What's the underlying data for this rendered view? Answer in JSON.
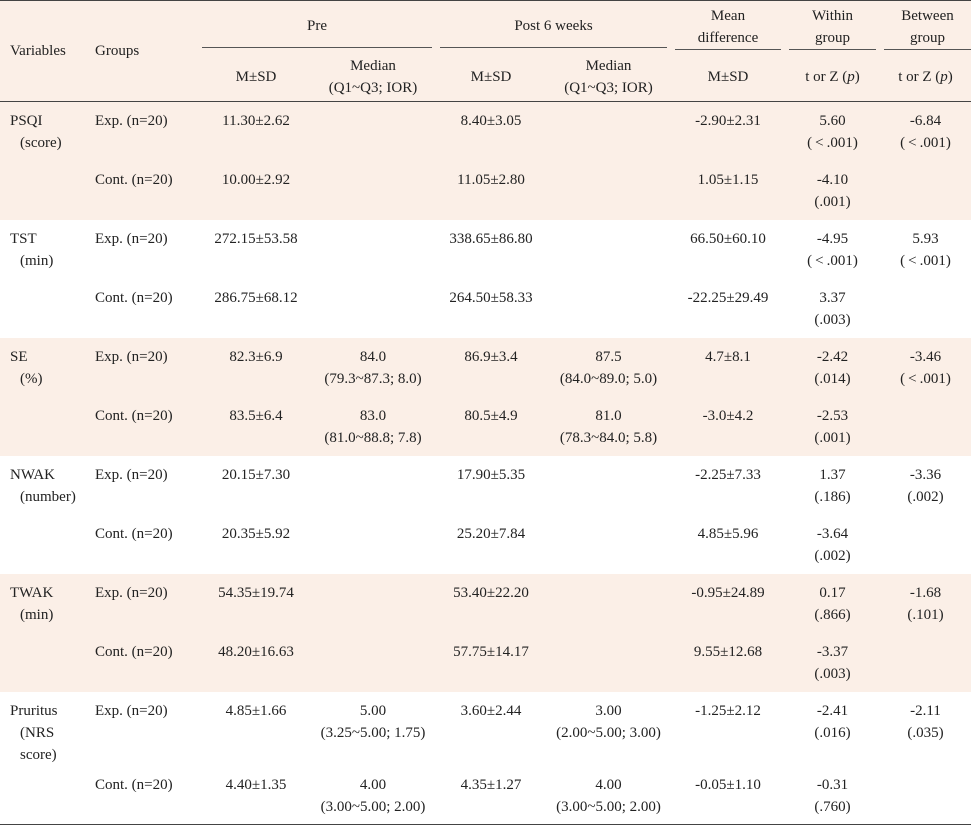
{
  "table": {
    "headers": {
      "variables": "Variables",
      "groups": "Groups",
      "pre": "Pre",
      "post": "Post 6 weeks",
      "mean_diff_1": "Mean",
      "mean_diff_2": "difference",
      "within_1": "Within",
      "within_2": "group",
      "between_1": "Between",
      "between_2": "group",
      "msd": "M±SD",
      "median_1": "Median",
      "median_2": "(Q1~Q3; IOR)",
      "test": "t or Z (",
      "p": "p",
      "close": ")"
    },
    "dagger": "†",
    "rows": [
      {
        "var1": "PSQI",
        "var2": "(score)",
        "group": "Exp. (n=20)",
        "pre_msd": "11.30±2.62",
        "pre_med1": "",
        "pre_med2": "",
        "post_msd": "8.40±3.05",
        "post_med1": "",
        "post_med2": "",
        "diff": "-2.90±2.31",
        "within1": "5.60",
        "within2": "( < .001)",
        "within_dag": false,
        "between1": "-6.84",
        "between2": "( < .001)",
        "between_dag": false
      },
      {
        "var1": "",
        "var2": "",
        "group": "Cont. (n=20)",
        "pre_msd": "10.00±2.92",
        "pre_med1": "",
        "pre_med2": "",
        "post_msd": "11.05±2.80",
        "post_med1": "",
        "post_med2": "",
        "diff": "1.05±1.15",
        "within1": "-4.10",
        "within2": "(.001)",
        "within_dag": false,
        "between1": "",
        "between2": "",
        "between_dag": false
      },
      {
        "var1": "TST",
        "var2": "(min)",
        "group": "Exp. (n=20)",
        "pre_msd": "272.15±53.58",
        "pre_med1": "",
        "pre_med2": "",
        "post_msd": "338.65±86.80",
        "post_med1": "",
        "post_med2": "",
        "diff": "66.50±60.10",
        "within1": "-4.95",
        "within2": "( < .001)",
        "within_dag": false,
        "between1": "5.93",
        "between2": "( < .001)",
        "between_dag": false
      },
      {
        "var1": "",
        "var2": "",
        "group": "Cont. (n=20)",
        "pre_msd": "286.75±68.12",
        "pre_med1": "",
        "pre_med2": "",
        "post_msd": "264.50±58.33",
        "post_med1": "",
        "post_med2": "",
        "diff": "-22.25±29.49",
        "within1": "3.37",
        "within2": "(.003)",
        "within_dag": false,
        "between1": "",
        "between2": "",
        "between_dag": false
      },
      {
        "var1": "SE",
        "var2": "(%)",
        "group": "Exp. (n=20)",
        "pre_msd": "82.3±6.9",
        "pre_med1": "84.0",
        "pre_med2": "(79.3~87.3; 8.0)",
        "post_msd": "86.9±3.4",
        "post_med1": "87.5",
        "post_med2": "(84.0~89.0; 5.0)",
        "diff": "4.7±8.1",
        "within1": "-2.42",
        "within2": "(.014)",
        "within_dag": true,
        "between1": "-3.46",
        "between2": "( < .001)",
        "between_dag": true
      },
      {
        "var1": "",
        "var2": "",
        "group": "Cont. (n=20)",
        "pre_msd": "83.5±6.4",
        "pre_med1": "83.0",
        "pre_med2": "(81.0~88.8; 7.8)",
        "post_msd": "80.5±4.9",
        "post_med1": "81.0",
        "post_med2": "(78.3~84.0; 5.8)",
        "diff": "-3.0±4.2",
        "within1": "-2.53",
        "within2": "(.001)",
        "within_dag": true,
        "between1": "",
        "between2": "",
        "between_dag": false
      },
      {
        "var1": "NWAK",
        "var2": "(number)",
        "group": "Exp. (n=20)",
        "pre_msd": "20.15±7.30",
        "pre_med1": "",
        "pre_med2": "",
        "post_msd": "17.90±5.35",
        "post_med1": "",
        "post_med2": "",
        "diff": "-2.25±7.33",
        "within1": "1.37",
        "within2": "(.186)",
        "within_dag": false,
        "between1": "-3.36",
        "between2": "(.002)",
        "between_dag": false
      },
      {
        "var1": "",
        "var2": "",
        "group": "Cont. (n=20)",
        "pre_msd": "20.35±5.92",
        "pre_med1": "",
        "pre_med2": "",
        "post_msd": "25.20±7.84",
        "post_med1": "",
        "post_med2": "",
        "diff": "4.85±5.96",
        "within1": "-3.64",
        "within2": "(.002)",
        "within_dag": false,
        "between1": "",
        "between2": "",
        "between_dag": false
      },
      {
        "var1": "TWAK",
        "var2": "(min)",
        "group": "Exp. (n=20)",
        "pre_msd": "54.35±19.74",
        "pre_med1": "",
        "pre_med2": "",
        "post_msd": "53.40±22.20",
        "post_med1": "",
        "post_med2": "",
        "diff": "-0.95±24.89",
        "within1": "0.17",
        "within2": "(.866)",
        "within_dag": false,
        "between1": "-1.68",
        "between2": "(.101)",
        "between_dag": false
      },
      {
        "var1": "",
        "var2": "",
        "group": "Cont. (n=20)",
        "pre_msd": "48.20±16.63",
        "pre_med1": "",
        "pre_med2": "",
        "post_msd": "57.75±14.17",
        "post_med1": "",
        "post_med2": "",
        "diff": "9.55±12.68",
        "within1": "-3.37",
        "within2": "(.003)",
        "within_dag": false,
        "between1": "",
        "between2": "",
        "between_dag": false
      },
      {
        "var1": "Pruritus",
        "var2": "(NRS",
        "var3": "score)",
        "group": "Exp. (n=20)",
        "pre_msd": "4.85±1.66",
        "pre_med1": "5.00",
        "pre_med2": "(3.25~5.00; 1.75)",
        "post_msd": "3.60±2.44",
        "post_med1": "3.00",
        "post_med2": "(2.00~5.00; 3.00)",
        "diff": "-1.25±2.12",
        "within1": "-2.41",
        "within2": "(.016)",
        "within_dag": true,
        "between1": "-2.11",
        "between2": "(.035)",
        "between_dag": true
      },
      {
        "var1": "",
        "var2": "",
        "group": "Cont. (n=20)",
        "pre_msd": "4.40±1.35",
        "pre_med1": "4.00",
        "pre_med2": "(3.00~5.00; 2.00)",
        "post_msd": "4.35±1.27",
        "post_med1": "4.00",
        "post_med2": "(3.00~5.00; 2.00)",
        "diff": "-0.05±1.10",
        "within1": "-0.31",
        "within2": "(.760)",
        "within_dag": true,
        "between1": "",
        "between2": "",
        "between_dag": false
      }
    ]
  }
}
